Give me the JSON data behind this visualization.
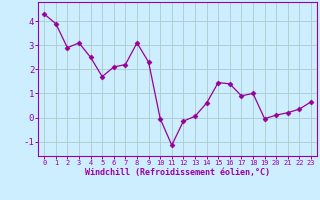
{
  "x": [
    0,
    1,
    2,
    3,
    4,
    5,
    6,
    7,
    8,
    9,
    10,
    11,
    12,
    13,
    14,
    15,
    16,
    17,
    18,
    19,
    20,
    21,
    22,
    23
  ],
  "y": [
    4.3,
    3.9,
    2.9,
    3.1,
    2.5,
    1.7,
    2.1,
    2.2,
    3.1,
    2.3,
    -0.05,
    -1.15,
    -0.15,
    0.05,
    0.6,
    1.45,
    1.4,
    0.9,
    1.0,
    -0.05,
    0.1,
    0.2,
    0.35,
    0.65
  ],
  "line_color": "#990099",
  "marker": "D",
  "marker_size": 2.5,
  "bg_color": "#cceeff",
  "grid_color": "#aacccc",
  "xlabel": "Windchill (Refroidissement éolien,°C)",
  "xlim": [
    -0.5,
    23.5
  ],
  "ylim": [
    -1.6,
    4.8
  ],
  "yticks": [
    -1,
    0,
    1,
    2,
    3,
    4
  ],
  "xticks": [
    0,
    1,
    2,
    3,
    4,
    5,
    6,
    7,
    8,
    9,
    10,
    11,
    12,
    13,
    14,
    15,
    16,
    17,
    18,
    19,
    20,
    21,
    22,
    23
  ],
  "spine_color": "#9900aa",
  "tick_color": "#9900aa",
  "label_color": "#9900aa",
  "xlabel_fontsize": 6.0,
  "ytick_fontsize": 6.5,
  "xtick_fontsize": 5.0
}
